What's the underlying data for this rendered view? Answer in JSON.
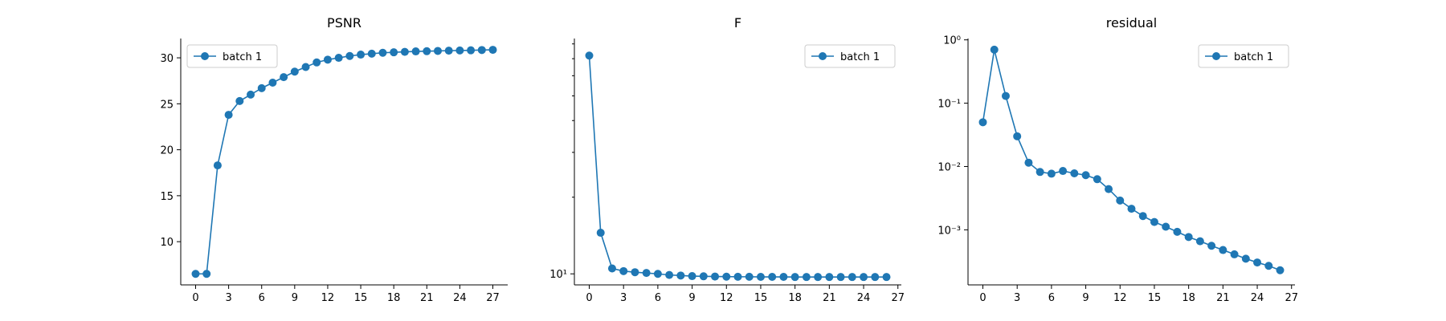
{
  "chart_data": [
    {
      "type": "line",
      "title": "PSNR",
      "xlabel": "",
      "ylabel": "",
      "yscale": "linear",
      "xlim": [
        -1.35,
        28.35
      ],
      "ylim": [
        5.3,
        32.1
      ],
      "xticks": [
        0,
        3,
        6,
        9,
        12,
        15,
        18,
        21,
        24,
        27
      ],
      "yticks": [
        10,
        15,
        20,
        25,
        30
      ],
      "ytick_labels": [
        "10",
        "15",
        "20",
        "25",
        "30"
      ],
      "legend_position": "upper-left",
      "color": "#1f77b4",
      "series": [
        {
          "name": "batch 1",
          "x": [
            0,
            1,
            2,
            3,
            4,
            5,
            6,
            7,
            8,
            9,
            10,
            11,
            12,
            13,
            14,
            15,
            16,
            17,
            18,
            19,
            20,
            21,
            22,
            23,
            24,
            25,
            26,
            27
          ],
          "values": [
            6.5,
            6.5,
            18.3,
            23.8,
            25.3,
            26.0,
            26.7,
            27.3,
            27.9,
            28.5,
            29.0,
            29.5,
            29.8,
            30.0,
            30.2,
            30.35,
            30.45,
            30.55,
            30.6,
            30.65,
            30.7,
            30.72,
            30.75,
            30.78,
            30.8,
            30.82,
            30.85,
            30.87
          ]
        }
      ]
    },
    {
      "type": "line",
      "title": "F",
      "xlabel": "",
      "ylabel": "",
      "yscale": "log",
      "xlim": [
        -1.3,
        27.3
      ],
      "ylim": [
        9.05,
        84
      ],
      "xticks": [
        0,
        3,
        6,
        9,
        12,
        15,
        18,
        21,
        24,
        27
      ],
      "yticks": [
        10
      ],
      "ytick_labels": [
        "10¹"
      ],
      "minor_yticks": [
        20,
        30,
        40,
        50,
        60,
        70,
        80
      ],
      "legend_position": "upper-right",
      "color": "#1f77b4",
      "series": [
        {
          "name": "batch 1",
          "x": [
            0,
            1,
            2,
            3,
            4,
            5,
            6,
            7,
            8,
            9,
            10,
            11,
            12,
            13,
            14,
            15,
            16,
            17,
            18,
            19,
            20,
            21,
            22,
            23,
            24,
            25,
            26
          ],
          "values": [
            72,
            14.5,
            10.5,
            10.25,
            10.15,
            10.08,
            10.0,
            9.9,
            9.85,
            9.8,
            9.78,
            9.76,
            9.75,
            9.74,
            9.74,
            9.73,
            9.73,
            9.73,
            9.72,
            9.72,
            9.72,
            9.72,
            9.72,
            9.72,
            9.72,
            9.72,
            9.72
          ]
        }
      ]
    },
    {
      "type": "line",
      "title": "residual",
      "xlabel": "",
      "ylabel": "",
      "yscale": "log",
      "xlim": [
        -1.3,
        27.3
      ],
      "ylim": [
        0.000135,
        1.05
      ],
      "xticks": [
        0,
        3,
        6,
        9,
        12,
        15,
        18,
        21,
        24,
        27
      ],
      "yticks": [
        0.001,
        0.01,
        0.1,
        1
      ],
      "ytick_labels": [
        "10⁻³",
        "10⁻²",
        "10⁻¹",
        "10⁰"
      ],
      "legend_position": "upper-right",
      "color": "#1f77b4",
      "series": [
        {
          "name": "batch 1",
          "x": [
            0,
            1,
            2,
            3,
            4,
            5,
            6,
            7,
            8,
            9,
            10,
            11,
            12,
            13,
            14,
            15,
            16,
            17,
            18,
            19,
            20,
            21,
            22,
            23,
            24,
            25,
            26
          ],
          "values": [
            0.05,
            0.7,
            0.13,
            0.03,
            0.0115,
            0.0082,
            0.0077,
            0.0085,
            0.0078,
            0.0073,
            0.0063,
            0.0044,
            0.0029,
            0.00215,
            0.00165,
            0.00133,
            0.00112,
            0.00093,
            0.00077,
            0.00066,
            0.00056,
            0.00048,
            0.00041,
            0.00035,
            0.000305,
            0.00027,
            0.00023
          ]
        }
      ]
    }
  ]
}
